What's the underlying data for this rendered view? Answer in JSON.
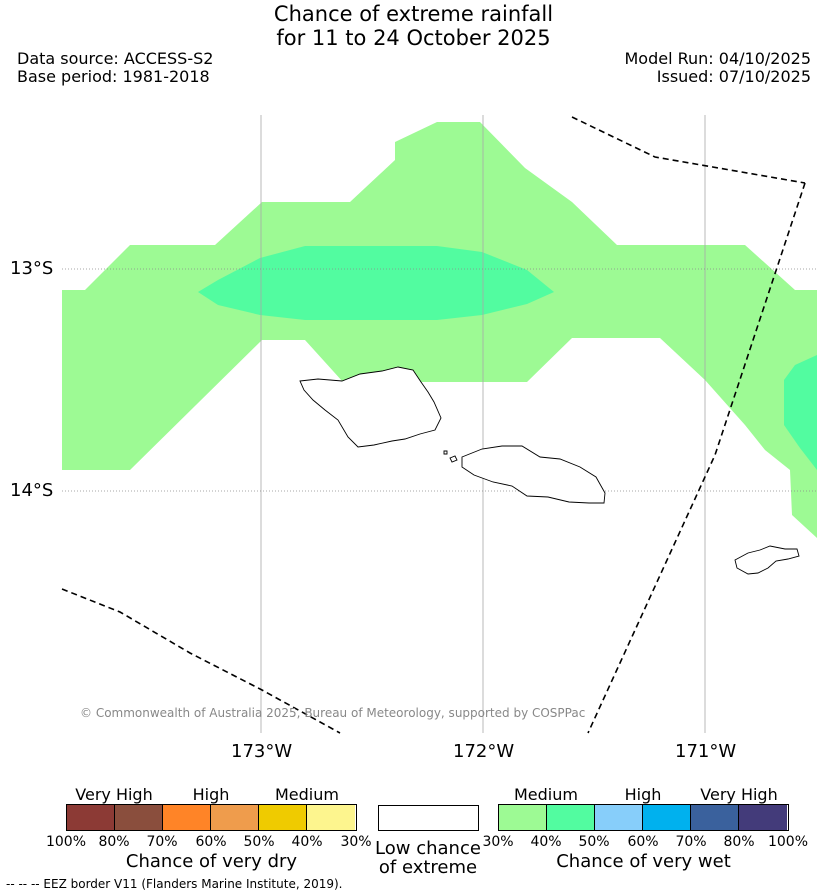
{
  "header": {
    "title_line1": "Chance of extreme rainfall",
    "title_line2": "for 11 to 24 October 2025",
    "data_source": "Data source: ACCESS-S2",
    "base_period": "Base period: 1981-2018",
    "model_run": "Model Run: 04/10/2025",
    "issued": "Issued: 07/10/2025"
  },
  "map": {
    "lat_labels": [
      "13°S",
      "14°S"
    ],
    "lon_labels": [
      "173°W",
      "172°W",
      "171°W"
    ],
    "credit": "© Commonwealth of Australia 2025, Bureau of Meteorology, supported by COSPPac",
    "region": "Samoa",
    "fill_colors": {
      "medium_30": "#9dfa94",
      "medium_40": "#52fca0",
      "eez": "#000000"
    }
  },
  "legend": {
    "dry": {
      "headers": [
        "Very High",
        "High",
        "Medium"
      ],
      "colors": [
        "#8c3a35",
        "#8a4e3d",
        "#ff8427",
        "#ef9c4c",
        "#efcb00",
        "#fdf58e"
      ],
      "ticks": [
        "100%",
        "80%",
        "70%",
        "60%",
        "50%",
        "40%",
        "30%"
      ],
      "title": "Chance of very dry"
    },
    "low": {
      "title_line1": "Low chance",
      "title_line2": "of extreme"
    },
    "wet": {
      "headers": [
        "Medium",
        "High",
        "Very High"
      ],
      "colors": [
        "#9dfa94",
        "#52fca0",
        "#87cefa",
        "#00b1ee",
        "#3a619d",
        "#433b7a"
      ],
      "ticks": [
        "30%",
        "40%",
        "50%",
        "60%",
        "70%",
        "80%",
        "100%"
      ],
      "title": "Chance of very wet"
    }
  },
  "footer": {
    "eez_note": "--  --  -- EEZ border V11 (Flanders Marine Institute, 2019)."
  }
}
